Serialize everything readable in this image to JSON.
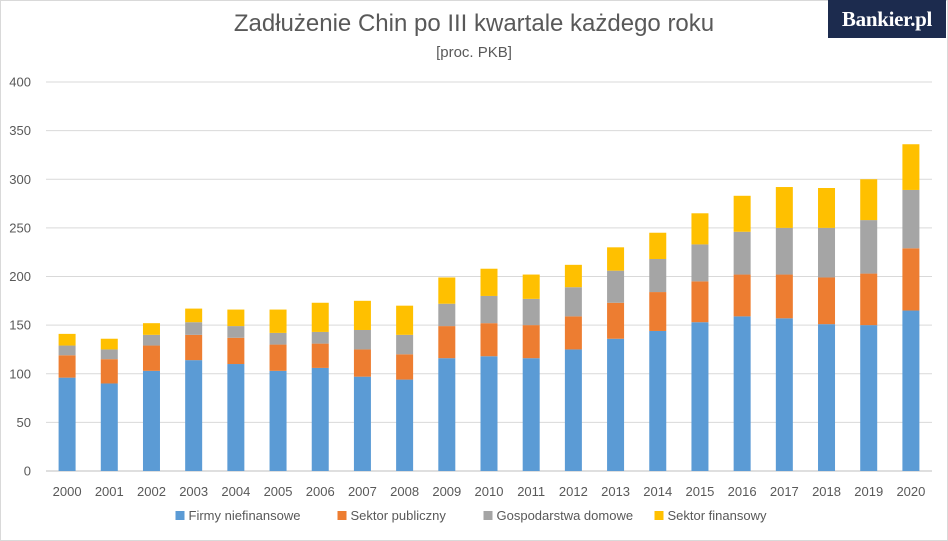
{
  "brand": "Bankier.pl",
  "chart_data": {
    "type": "bar",
    "stacked": true,
    "title": "Zadłużenie Chin po III kwartale każdego roku",
    "subtitle": "[proc. PKB]",
    "xlabel": "",
    "ylabel": "",
    "ylim": [
      0,
      400
    ],
    "yticks": [
      0,
      50,
      100,
      150,
      200,
      250,
      300,
      350,
      400
    ],
    "grid": true,
    "legend_position": "bottom",
    "categories": [
      "2000",
      "2001",
      "2002",
      "2003",
      "2004",
      "2005",
      "2006",
      "2007",
      "2008",
      "2009",
      "2010",
      "2011",
      "2012",
      "2013",
      "2014",
      "2015",
      "2016",
      "2017",
      "2018",
      "2019",
      "2020"
    ],
    "series": [
      {
        "name": "Firmy niefinansowe",
        "color": "#5b9bd5",
        "values": [
          96,
          90,
          103,
          114,
          110,
          103,
          106,
          97,
          94,
          116,
          118,
          116,
          125,
          136,
          144,
          153,
          159,
          157,
          151,
          150,
          165
        ]
      },
      {
        "name": "Sektor publiczny",
        "color": "#ed7d31",
        "values": [
          23,
          25,
          26,
          26,
          27,
          27,
          25,
          28,
          26,
          33,
          34,
          34,
          34,
          37,
          40,
          42,
          43,
          45,
          48,
          53,
          64
        ]
      },
      {
        "name": "Gospodarstwa domowe",
        "color": "#a5a5a5",
        "values": [
          10,
          10,
          11,
          13,
          12,
          12,
          12,
          20,
          20,
          23,
          28,
          27,
          30,
          33,
          34,
          38,
          44,
          48,
          51,
          55,
          60
        ]
      },
      {
        "name": "Sektor finansowy",
        "color": "#ffc000",
        "values": [
          12,
          11,
          12,
          14,
          17,
          24,
          30,
          30,
          30,
          27,
          28,
          25,
          23,
          24,
          27,
          32,
          37,
          42,
          41,
          42,
          47
        ]
      }
    ]
  }
}
